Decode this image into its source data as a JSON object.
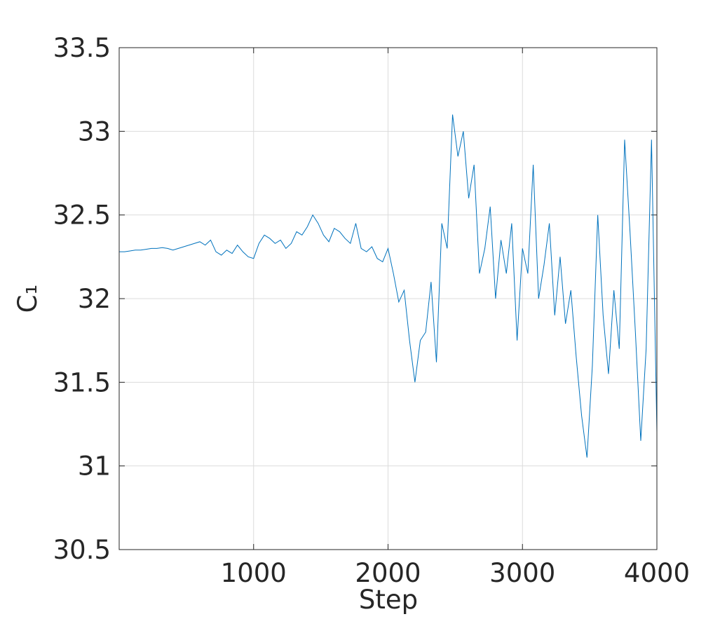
{
  "chart_data": {
    "type": "line",
    "xlabel": "Step",
    "ylabel": "C₁",
    "x": [
      0,
      40,
      80,
      120,
      160,
      200,
      240,
      280,
      320,
      360,
      400,
      440,
      480,
      520,
      560,
      600,
      640,
      680,
      720,
      760,
      800,
      840,
      880,
      920,
      960,
      1000,
      1040,
      1080,
      1120,
      1160,
      1200,
      1240,
      1280,
      1320,
      1360,
      1400,
      1440,
      1480,
      1520,
      1560,
      1600,
      1640,
      1680,
      1720,
      1760,
      1800,
      1840,
      1880,
      1920,
      1960,
      2000,
      2040,
      2080,
      2120,
      2160,
      2200,
      2240,
      2280,
      2320,
      2360,
      2400,
      2440,
      2480,
      2520,
      2560,
      2600,
      2640,
      2680,
      2720,
      2760,
      2800,
      2840,
      2880,
      2920,
      2960,
      3000,
      3040,
      3080,
      3120,
      3160,
      3200,
      3240,
      3280,
      3320,
      3360,
      3400,
      3440,
      3480,
      3520,
      3560,
      3600,
      3640,
      3680,
      3720,
      3760,
      3800,
      3840,
      3880,
      3920,
      3960,
      4000
    ],
    "series": [
      {
        "color": "#0072bd",
        "values": [
          32.28,
          32.28,
          32.285,
          32.29,
          32.29,
          32.295,
          32.3,
          32.3,
          32.305,
          32.3,
          32.29,
          32.3,
          32.31,
          32.32,
          32.33,
          32.34,
          32.32,
          32.35,
          32.28,
          32.26,
          32.29,
          32.27,
          32.32,
          32.28,
          32.25,
          32.24,
          32.33,
          32.38,
          32.36,
          32.33,
          32.35,
          32.3,
          32.33,
          32.4,
          32.38,
          32.43,
          32.5,
          32.45,
          32.38,
          32.34,
          32.42,
          32.4,
          32.36,
          32.33,
          32.45,
          32.3,
          32.28,
          32.31,
          32.24,
          32.22,
          32.3,
          32.15,
          31.98,
          32.05,
          31.75,
          31.5,
          31.75,
          31.8,
          32.1,
          31.62,
          32.45,
          32.3,
          33.1,
          32.85,
          33.0,
          32.6,
          32.8,
          32.15,
          32.3,
          32.55,
          32.0,
          32.35,
          32.15,
          32.45,
          31.75,
          32.3,
          32.15,
          32.8,
          32.0,
          32.2,
          32.45,
          31.9,
          32.25,
          31.85,
          32.05,
          31.65,
          31.3,
          31.05,
          31.6,
          32.5,
          31.9,
          31.55,
          32.05,
          31.7,
          32.95,
          32.4,
          31.8,
          31.15,
          31.7,
          32.95,
          31.2
        ]
      }
    ],
    "xlim": [
      0,
      4000
    ],
    "xticks": [
      1000,
      2000,
      3000,
      4000
    ],
    "ylim": [
      30.5,
      33.5
    ],
    "yticks": [
      30.5,
      31,
      31.5,
      32,
      32.5,
      33,
      33.5
    ],
    "grid": true
  }
}
